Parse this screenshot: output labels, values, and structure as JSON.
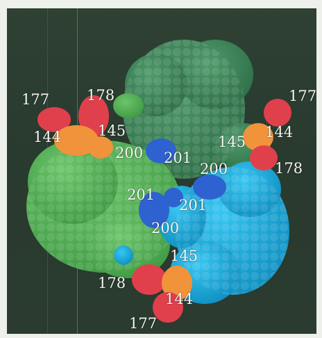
{
  "figure": {
    "colors": {
      "frame_bg": "#eef0ec",
      "panel_bg": "#2c3d30",
      "subunit_top": "#3f8a5e",
      "subunit_left": "#5bb55a",
      "subunit_right": "#19b4e6",
      "region_red": "#e0404c",
      "region_orange": "#f1933a",
      "region_blue": "#2e62d0",
      "label_text": "#f4f6f2"
    },
    "labels": {
      "tl_177": "177",
      "tl_178": "178",
      "tl_144": "144",
      "tl_145": "145",
      "c_200_top": "200",
      "c_201_top": "201",
      "tr_177": "177",
      "tr_144": "144",
      "tr_145": "145",
      "tr_178": "178",
      "r_200": "200",
      "c_201_left": "201",
      "c_201_right": "201",
      "c_200_bottom": "200",
      "b_145": "145",
      "b_178": "178",
      "b_144": "144",
      "b_177": "177"
    }
  }
}
